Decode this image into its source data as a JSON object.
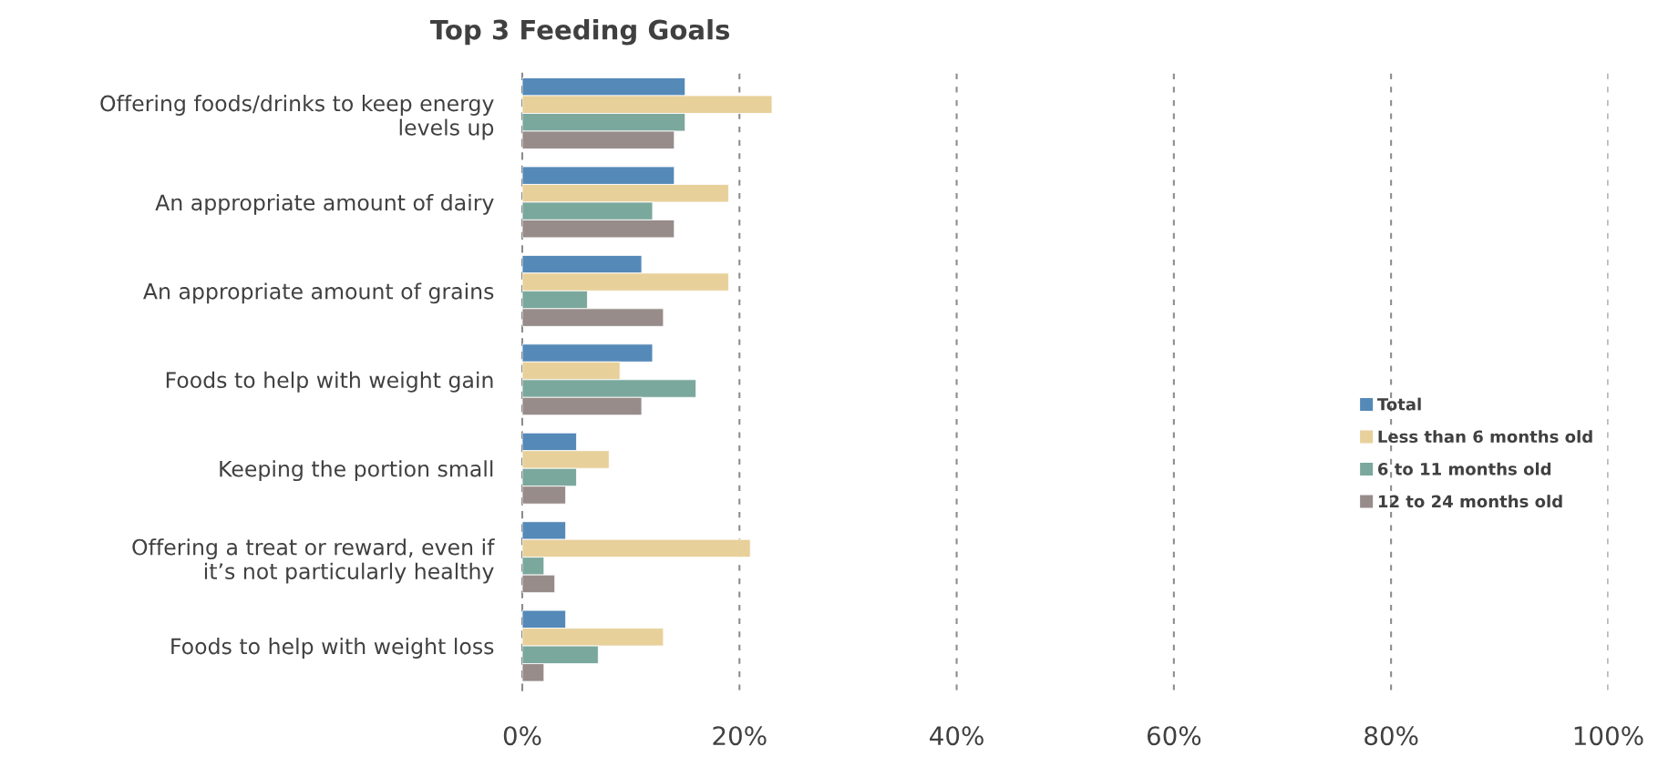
{
  "chart_data": {
    "type": "bar",
    "orientation": "horizontal",
    "title": "Top 3 Feeding Goals",
    "categories": [
      "Offering foods/drinks to keep energy levels up",
      "An appropriate amount of dairy",
      "An appropriate amount of grains",
      "Foods to help with weight gain",
      "Keeping the portion small",
      "Offering a treat or reward, even if it’s not particularly healthy",
      "Foods to help with weight loss"
    ],
    "series": [
      {
        "name": "Total",
        "color": "#5589b8",
        "values": [
          15,
          14,
          11,
          12,
          5,
          4,
          4
        ]
      },
      {
        "name": "Less than 6 months old",
        "color": "#e8d09b",
        "values": [
          23,
          19,
          19,
          9,
          8,
          21,
          13
        ]
      },
      {
        "name": "6 to 11 months old",
        "color": "#7ba89c",
        "values": [
          15,
          12,
          6,
          16,
          5,
          2,
          7
        ]
      },
      {
        "name": "12 to 24 months old",
        "color": "#978c8a",
        "values": [
          14,
          14,
          13,
          11,
          4,
          3,
          2
        ]
      }
    ],
    "xlim": [
      0,
      100
    ],
    "xticks": [
      {
        "value": 0,
        "label": "0%"
      },
      {
        "value": 20,
        "label": "20%"
      },
      {
        "value": 40,
        "label": "40%"
      },
      {
        "value": 60,
        "label": "60%"
      },
      {
        "value": 80,
        "label": "80%"
      },
      {
        "value": 100,
        "label": "100%"
      }
    ],
    "grid": "x",
    "legend": "right"
  }
}
